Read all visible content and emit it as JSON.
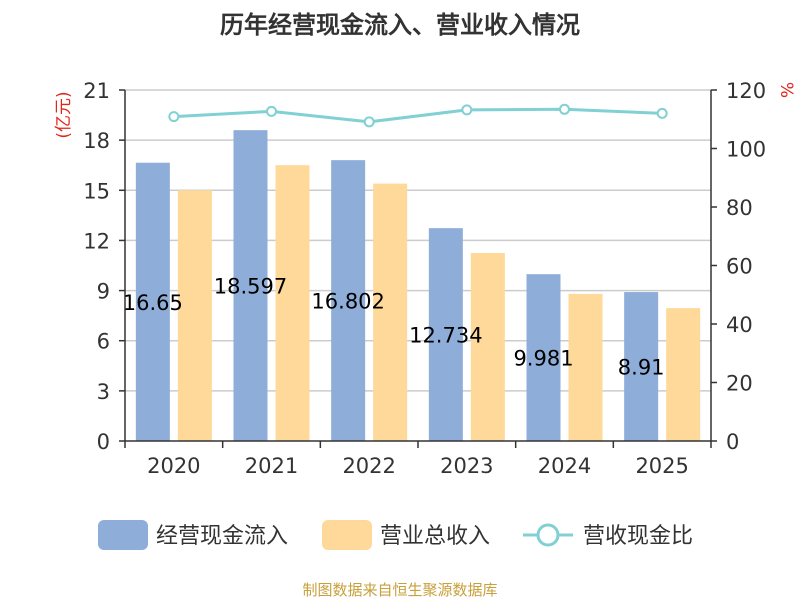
{
  "colors": {
    "cash_inflow": "#8eadd9",
    "revenue": "#fed999",
    "ratio": "#80d0d4",
    "grid": "#cccccc",
    "axis": "#333333",
    "unit_red": "#e0251b",
    "source": "#c8a03c"
  },
  "chart_data": {
    "type": "bar",
    "title": "历年经营现金流入、营业收入情况",
    "categories": [
      "2020",
      "2021",
      "2022",
      "2023",
      "2024",
      "2025"
    ],
    "series": [
      {
        "name": "经营现金流入",
        "type": "bar",
        "axis": "left",
        "values": [
          16.65,
          18.597,
          16.802,
          12.734,
          9.981,
          8.91
        ],
        "labels": [
          "16.65",
          "18.597",
          "16.802",
          "12.734",
          "9.981",
          "8.91"
        ]
      },
      {
        "name": "营业总收入",
        "type": "bar",
        "axis": "left",
        "values": [
          15.0,
          16.5,
          15.4,
          11.25,
          8.8,
          7.95
        ]
      },
      {
        "name": "营收现金比",
        "type": "line",
        "axis": "right",
        "values": [
          110.9,
          112.7,
          109.1,
          113.2,
          113.4,
          112.0
        ]
      }
    ],
    "y_left": {
      "unit": "(亿元)",
      "min": 0,
      "max": 21,
      "ticks": [
        "0",
        "3",
        "6",
        "9",
        "12",
        "15",
        "18",
        "21"
      ]
    },
    "y_right": {
      "unit": "%",
      "min": 0,
      "max": 120,
      "ticks": [
        "0",
        "20",
        "40",
        "60",
        "80",
        "100",
        "120"
      ]
    },
    "grid": true,
    "legend_position": "bottom"
  },
  "footer": {
    "source": "制图数据来自恒生聚源数据库"
  }
}
